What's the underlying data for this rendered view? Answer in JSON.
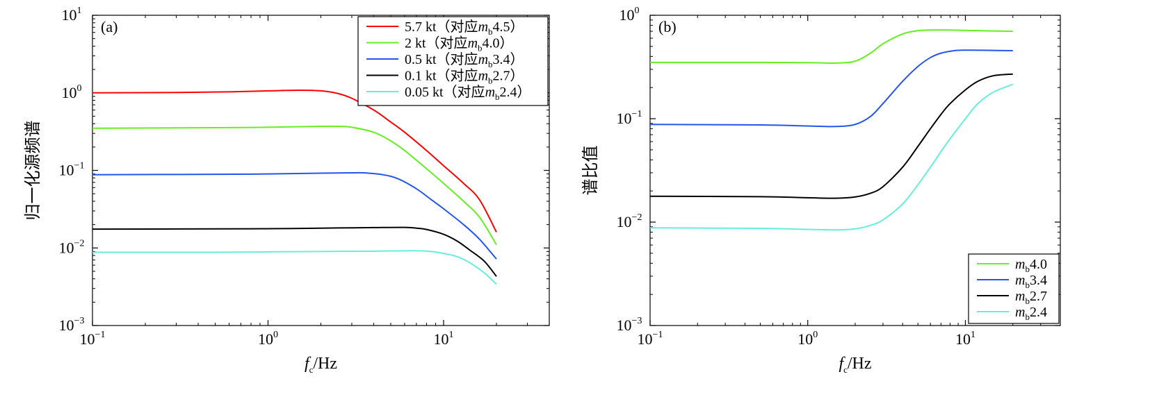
{
  "chart_data": [
    {
      "type": "line",
      "panel": "(a)",
      "xlabel_f": "f",
      "xlabel_sub": "c",
      "xlabel_unit": "/Hz",
      "ylabel": "归一化源频谱",
      "xscale": "log",
      "yscale": "log",
      "xlim": [
        0.1,
        40
      ],
      "ylim": [
        0.001,
        10
      ],
      "xtick_base": "10",
      "xticks": [
        {
          "value": 0.1,
          "exp": "−1"
        },
        {
          "value": 1,
          "exp": "0"
        },
        {
          "value": 10,
          "exp": "1"
        }
      ],
      "ytick_base": "10",
      "yticks": [
        {
          "value": 10,
          "exp": "1"
        },
        {
          "value": 1,
          "exp": "0"
        },
        {
          "value": 0.1,
          "exp": "−1"
        },
        {
          "value": 0.01,
          "exp": "−2"
        },
        {
          "value": 0.001,
          "exp": "−3"
        }
      ],
      "legend_position": "top-right",
      "series": [
        {
          "name": "5.7 kt",
          "label_pre": "5.7 kt（对应",
          "mag_m": "m",
          "mag_sub": "b",
          "mag_val": "4.5）",
          "color": "#ff0000",
          "points": [
            [
              0.1,
              1.0
            ],
            [
              0.3,
              1.01
            ],
            [
              0.6,
              1.03
            ],
            [
              1.0,
              1.06
            ],
            [
              1.5,
              1.08
            ],
            [
              2.0,
              1.06
            ],
            [
              2.5,
              0.98
            ],
            [
              3.0,
              0.85
            ],
            [
              4.0,
              0.6
            ],
            [
              5.0,
              0.42
            ],
            [
              6.0,
              0.31
            ],
            [
              8.0,
              0.18
            ],
            [
              10.0,
              0.115
            ],
            [
              13.0,
              0.068
            ],
            [
              16.0,
              0.042
            ],
            [
              20.0,
              0.016
            ]
          ]
        },
        {
          "name": "2 kt",
          "label_pre": "2 kt（对应",
          "mag_m": "m",
          "mag_sub": "b",
          "mag_val": "4.0）",
          "color": "#66ee22",
          "points": [
            [
              0.1,
              0.35
            ],
            [
              0.5,
              0.355
            ],
            [
              1.0,
              0.36
            ],
            [
              2.0,
              0.37
            ],
            [
              2.5,
              0.37
            ],
            [
              3.0,
              0.36
            ],
            [
              4.0,
              0.31
            ],
            [
              5.0,
              0.24
            ],
            [
              6.0,
              0.18
            ],
            [
              8.0,
              0.105
            ],
            [
              10.0,
              0.068
            ],
            [
              13.0,
              0.04
            ],
            [
              16.0,
              0.025
            ],
            [
              20.0,
              0.011
            ]
          ]
        },
        {
          "name": "0.5 kt",
          "label_pre": "0.5 kt（对应",
          "mag_m": "m",
          "mag_sub": "b",
          "mag_val": "3.4）",
          "color": "#2255ee",
          "points": [
            [
              0.1,
              0.088
            ],
            [
              0.5,
              0.089
            ],
            [
              1.0,
              0.09
            ],
            [
              2.0,
              0.092
            ],
            [
              3.0,
              0.093
            ],
            [
              3.5,
              0.093
            ],
            [
              4.5,
              0.088
            ],
            [
              5.5,
              0.078
            ],
            [
              7.0,
              0.058
            ],
            [
              8.5,
              0.042
            ],
            [
              10.0,
              0.032
            ],
            [
              13.0,
              0.02
            ],
            [
              16.0,
              0.013
            ],
            [
              20.0,
              0.0072
            ]
          ]
        },
        {
          "name": "0.1 kt",
          "label_pre": "0.1 kt（对应",
          "mag_m": "m",
          "mag_sub": "b",
          "mag_val": "2.7）",
          "color": "#000000",
          "points": [
            [
              0.1,
              0.0175
            ],
            [
              0.5,
              0.0176
            ],
            [
              1.0,
              0.0177
            ],
            [
              2.0,
              0.018
            ],
            [
              4.0,
              0.0183
            ],
            [
              6.0,
              0.0184
            ],
            [
              7.0,
              0.018
            ],
            [
              8.0,
              0.0173
            ],
            [
              10.0,
              0.015
            ],
            [
              12.0,
              0.0122
            ],
            [
              14.0,
              0.0095
            ],
            [
              17.0,
              0.0068
            ],
            [
              20.0,
              0.0043
            ]
          ]
        },
        {
          "name": "0.05 kt",
          "label_pre": "0.05 kt（对应",
          "mag_m": "m",
          "mag_sub": "b",
          "mag_val": "2.4）",
          "color": "#66eedd",
          "points": [
            [
              0.1,
              0.0088
            ],
            [
              0.5,
              0.0088
            ],
            [
              1.0,
              0.0089
            ],
            [
              2.0,
              0.009
            ],
            [
              4.0,
              0.0091
            ],
            [
              7.0,
              0.0092
            ],
            [
              8.5,
              0.009
            ],
            [
              10.0,
              0.0085
            ],
            [
              12.0,
              0.0077
            ],
            [
              14.0,
              0.0065
            ],
            [
              17.0,
              0.0048
            ],
            [
              20.0,
              0.0034
            ]
          ]
        }
      ]
    },
    {
      "type": "line",
      "panel": "(b)",
      "xlabel_f": "f",
      "xlabel_sub": "c",
      "xlabel_unit": "/Hz",
      "ylabel": "谱比值",
      "xscale": "log",
      "yscale": "log",
      "xlim": [
        0.1,
        40
      ],
      "ylim": [
        0.001,
        1
      ],
      "xtick_base": "10",
      "xticks": [
        {
          "value": 0.1,
          "exp": "−1"
        },
        {
          "value": 1,
          "exp": "0"
        },
        {
          "value": 10,
          "exp": "1"
        }
      ],
      "ytick_base": "10",
      "yticks": [
        {
          "value": 1,
          "exp": "0"
        },
        {
          "value": 0.1,
          "exp": "−1"
        },
        {
          "value": 0.01,
          "exp": "−2"
        },
        {
          "value": 0.001,
          "exp": "−3"
        }
      ],
      "legend_position": "bottom-right",
      "series": [
        {
          "name": "mb4.0",
          "mag_m": "m",
          "mag_sub": "b",
          "mag_val": "4.0",
          "color": "#66ee22",
          "points": [
            [
              0.1,
              0.35
            ],
            [
              0.5,
              0.35
            ],
            [
              1.0,
              0.348
            ],
            [
              1.5,
              0.345
            ],
            [
              2.0,
              0.36
            ],
            [
              2.5,
              0.43
            ],
            [
              3.0,
              0.53
            ],
            [
              4.0,
              0.66
            ],
            [
              5.0,
              0.71
            ],
            [
              6.0,
              0.72
            ],
            [
              8.0,
              0.72
            ],
            [
              12.0,
              0.71
            ],
            [
              20.0,
              0.7
            ]
          ]
        },
        {
          "name": "mb3.4",
          "mag_m": "m",
          "mag_sub": "b",
          "mag_val": "3.4",
          "color": "#2255ee",
          "points": [
            [
              0.1,
              0.088
            ],
            [
              0.5,
              0.087
            ],
            [
              1.0,
              0.085
            ],
            [
              1.5,
              0.084
            ],
            [
              2.0,
              0.088
            ],
            [
              2.5,
              0.105
            ],
            [
              3.0,
              0.14
            ],
            [
              4.0,
              0.23
            ],
            [
              5.0,
              0.32
            ],
            [
              6.0,
              0.39
            ],
            [
              7.0,
              0.43
            ],
            [
              8.5,
              0.455
            ],
            [
              10.0,
              0.46
            ],
            [
              14.0,
              0.458
            ],
            [
              20.0,
              0.455
            ]
          ]
        },
        {
          "name": "mb2.7",
          "mag_m": "m",
          "mag_sub": "b",
          "mag_val": "2.7",
          "color": "#000000",
          "points": [
            [
              0.1,
              0.0178
            ],
            [
              0.5,
              0.0176
            ],
            [
              1.0,
              0.0172
            ],
            [
              1.5,
              0.017
            ],
            [
              2.0,
              0.0175
            ],
            [
              2.5,
              0.019
            ],
            [
              3.0,
              0.022
            ],
            [
              4.0,
              0.034
            ],
            [
              5.0,
              0.054
            ],
            [
              6.0,
              0.08
            ],
            [
              7.0,
              0.11
            ],
            [
              8.0,
              0.14
            ],
            [
              10.0,
              0.19
            ],
            [
              12.0,
              0.23
            ],
            [
              15.0,
              0.26
            ],
            [
              20.0,
              0.27
            ]
          ]
        },
        {
          "name": "mb2.4",
          "mag_m": "m",
          "mag_sub": "b",
          "mag_val": "2.4",
          "color": "#66eedd",
          "points": [
            [
              0.1,
              0.0088
            ],
            [
              0.5,
              0.0087
            ],
            [
              1.0,
              0.0085
            ],
            [
              1.5,
              0.0084
            ],
            [
              2.0,
              0.0086
            ],
            [
              2.5,
              0.0093
            ],
            [
              3.0,
              0.0105
            ],
            [
              4.0,
              0.015
            ],
            [
              5.0,
              0.023
            ],
            [
              6.0,
              0.034
            ],
            [
              7.0,
              0.048
            ],
            [
              8.0,
              0.064
            ],
            [
              10.0,
              0.1
            ],
            [
              12.0,
              0.14
            ],
            [
              15.0,
              0.18
            ],
            [
              20.0,
              0.215
            ]
          ]
        }
      ]
    }
  ]
}
